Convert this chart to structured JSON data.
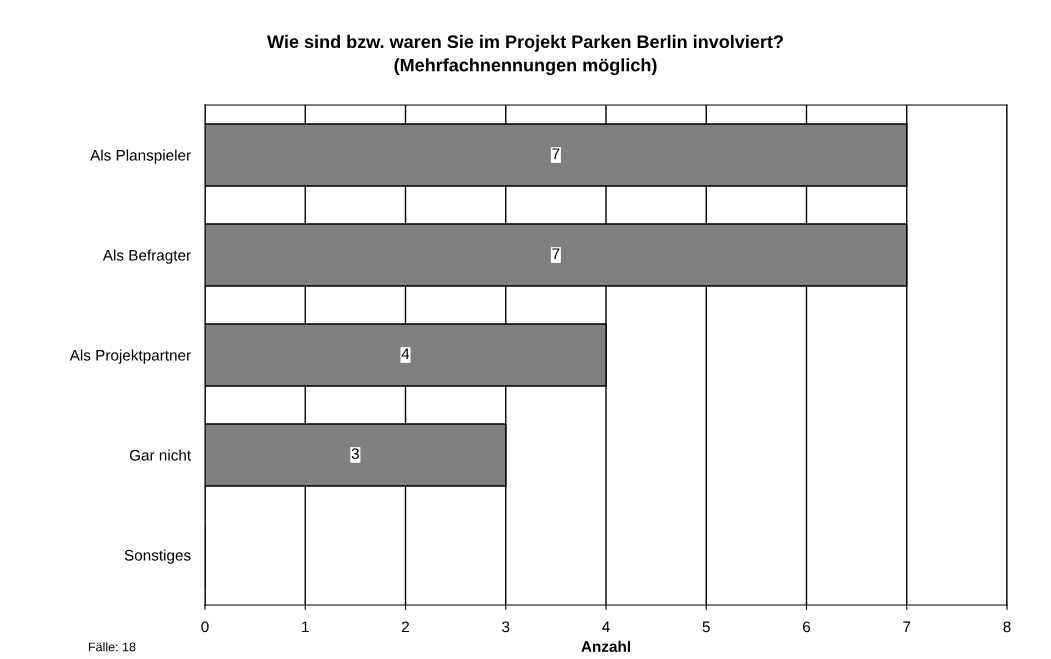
{
  "chart_data": {
    "type": "bar",
    "orientation": "horizontal",
    "title": "Wie sind bzw. waren Sie im Projekt Parken Berlin involviert?\n(Mehrfachnennungen möglich)",
    "xlabel": "Anzahl",
    "categories": [
      "Als Planspieler",
      "Als Befragter",
      "Als Projektpartner",
      "Gar nicht",
      "Sonstiges"
    ],
    "values": [
      7,
      7,
      4,
      3,
      0
    ],
    "value_labels": [
      "7",
      "7",
      "4",
      "3",
      null
    ],
    "color": "#808080",
    "xlim": [
      0,
      8
    ],
    "xticks": [
      0,
      1,
      2,
      3,
      4,
      5,
      6,
      7,
      8
    ],
    "grid": "x",
    "annotations": [
      "Fälle: 18"
    ]
  }
}
